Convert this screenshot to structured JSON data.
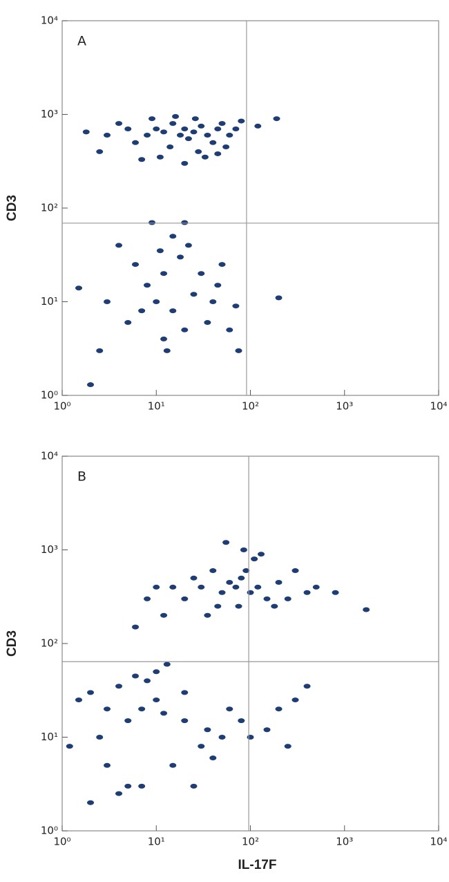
{
  "chart_data": [
    {
      "type": "scatter",
      "panel_label": "A",
      "ylabel": "CD3",
      "color": "#1d3d74",
      "log_x": true,
      "log_y": true,
      "xlim": [
        1,
        10000
      ],
      "ylim": [
        1,
        10000
      ],
      "xticks": [
        {
          "value": 1,
          "label": "10⁰"
        },
        {
          "value": 10,
          "label": "10¹"
        },
        {
          "value": 100,
          "label": "10²"
        },
        {
          "value": 1000,
          "label": "10³"
        },
        {
          "value": 10000,
          "label": "10⁴"
        }
      ],
      "yticks": [
        {
          "value": 1,
          "label": "10⁰"
        },
        {
          "value": 10,
          "label": "10¹"
        },
        {
          "value": 100,
          "label": "10²"
        },
        {
          "value": 1000,
          "label": "10³"
        },
        {
          "value": 10000,
          "label": "10⁴"
        }
      ],
      "gate_x": 91,
      "gate_y": 69,
      "x": [
        8,
        10,
        12,
        15,
        18,
        20,
        22,
        25,
        30,
        35,
        40,
        45,
        50,
        60,
        6,
        5,
        3,
        2.5,
        14,
        28,
        70,
        80,
        120,
        190,
        1.8,
        4,
        9,
        16,
        26,
        55,
        11,
        20,
        33,
        45,
        7,
        10,
        12,
        15,
        8,
        18,
        20,
        25,
        6,
        5,
        3,
        2.5,
        12,
        15,
        20,
        9,
        30,
        40,
        50,
        60,
        70,
        75,
        4,
        2,
        1.5,
        200,
        13,
        7,
        11,
        22,
        35,
        45
      ],
      "y": [
        600,
        700,
        650,
        800,
        600,
        700,
        550,
        650,
        750,
        600,
        500,
        700,
        800,
        600,
        500,
        700,
        600,
        400,
        450,
        400,
        700,
        850,
        750,
        900,
        650,
        800,
        900,
        950,
        900,
        450,
        350,
        300,
        350,
        380,
        330,
        10,
        20,
        8,
        15,
        30,
        5,
        12,
        25,
        6,
        10,
        3,
        4,
        50,
        70,
        70,
        20,
        10,
        25,
        5,
        9,
        3,
        40,
        1.3,
        14,
        11,
        3,
        8,
        35,
        40,
        6,
        15
      ]
    },
    {
      "type": "scatter",
      "panel_label": "B",
      "ylabel": "CD3",
      "xlabel": "IL-17F",
      "color": "#1d3d74",
      "log_x": true,
      "log_y": true,
      "xlim": [
        1,
        10000
      ],
      "ylim": [
        1,
        10000
      ],
      "xticks": [
        {
          "value": 1,
          "label": "10⁰"
        },
        {
          "value": 10,
          "label": "10¹"
        },
        {
          "value": 100,
          "label": "10²"
        },
        {
          "value": 1000,
          "label": "10³"
        },
        {
          "value": 10000,
          "label": "10⁴"
        }
      ],
      "yticks": [
        {
          "value": 1,
          "label": "10⁰"
        },
        {
          "value": 10,
          "label": "10¹"
        },
        {
          "value": 100,
          "label": "10²"
        },
        {
          "value": 1000,
          "label": "10³"
        },
        {
          "value": 10000,
          "label": "10⁴"
        }
      ],
      "gate_x": 96,
      "gate_y": 64,
      "x": [
        70,
        80,
        100,
        90,
        60,
        120,
        150,
        200,
        50,
        40,
        30,
        25,
        110,
        130,
        75,
        180,
        250,
        300,
        400,
        20,
        15,
        12,
        800,
        1700,
        35,
        55,
        85,
        45,
        10,
        500,
        8,
        6,
        1.5,
        2,
        3,
        4,
        5,
        7,
        10,
        12,
        20,
        8,
        6,
        2.5,
        3,
        5,
        4,
        2,
        1.2,
        30,
        40,
        50,
        60,
        80,
        100,
        150,
        200,
        300,
        400,
        250,
        20,
        15,
        35,
        7,
        10,
        13,
        25
      ],
      "y": [
        400,
        500,
        350,
        600,
        450,
        400,
        300,
        450,
        350,
        600,
        400,
        500,
        800,
        900,
        250,
        250,
        300,
        600,
        350,
        300,
        400,
        200,
        350,
        230,
        200,
        1200,
        1000,
        250,
        400,
        400,
        300,
        150,
        25,
        30,
        20,
        35,
        15,
        20,
        25,
        18,
        15,
        40,
        45,
        10,
        5,
        3,
        2.5,
        2,
        8,
        8,
        6,
        10,
        20,
        15,
        10,
        12,
        20,
        25,
        35,
        8,
        30,
        5,
        12,
        3,
        50,
        60,
        3
      ]
    }
  ]
}
